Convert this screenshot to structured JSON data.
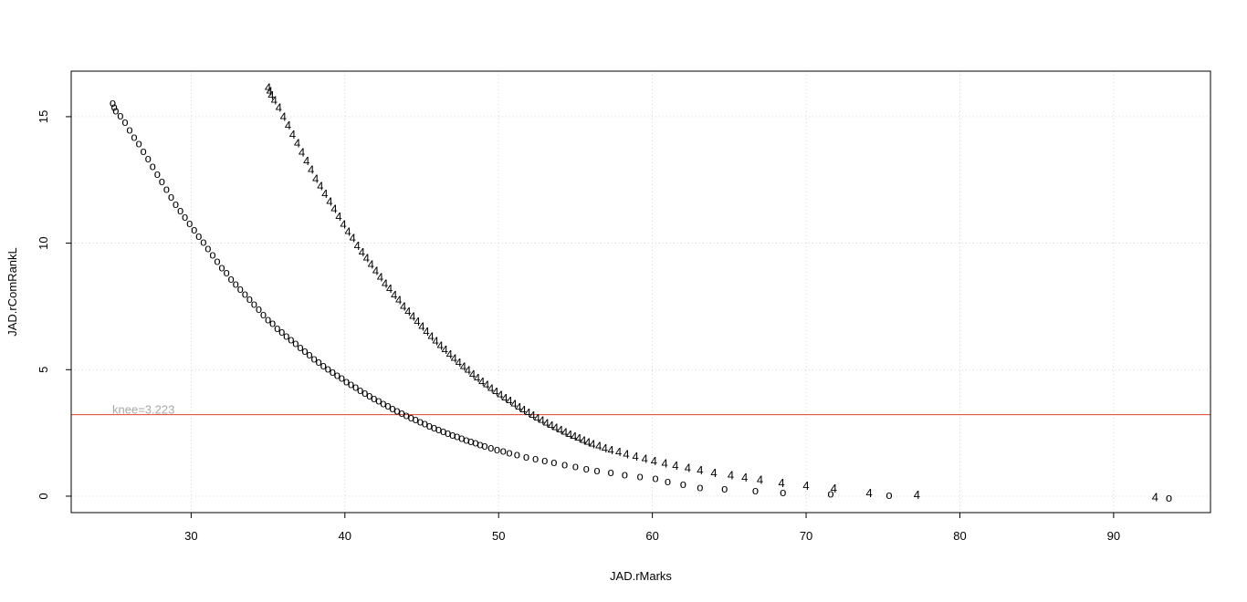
{
  "chart_data": {
    "type": "scatter",
    "xlabel": "JAD.rMarks",
    "ylabel": "JAD.rComRankL",
    "xlim": [
      22.2,
      96.3
    ],
    "ylim": [
      -0.65,
      16.8
    ],
    "xticks": [
      30,
      40,
      50,
      60,
      70,
      80,
      90
    ],
    "yticks": [
      0,
      5,
      10,
      15
    ],
    "grid": true,
    "grid_style": "dotted",
    "colors": {
      "grid": "#d3d3d3",
      "knee_line": "#e0402f",
      "knee_text": "#a9a9a9",
      "points": "#000000"
    },
    "knee": {
      "y": 3.223,
      "label": "knee=3.223"
    },
    "series": [
      {
        "marker": "o",
        "points": [
          [
            24.9,
            15.55
          ],
          [
            25.0,
            15.4
          ],
          [
            25.1,
            15.25
          ],
          [
            25.4,
            15.05
          ],
          [
            25.7,
            14.8
          ],
          [
            26.0,
            14.5
          ],
          [
            26.3,
            14.2
          ],
          [
            26.6,
            13.95
          ],
          [
            26.9,
            13.65
          ],
          [
            27.2,
            13.35
          ],
          [
            27.5,
            13.05
          ],
          [
            27.8,
            12.75
          ],
          [
            28.1,
            12.45
          ],
          [
            28.4,
            12.15
          ],
          [
            28.7,
            11.85
          ],
          [
            29.0,
            11.55
          ],
          [
            29.3,
            11.3
          ],
          [
            29.6,
            11.05
          ],
          [
            29.9,
            10.8
          ],
          [
            30.2,
            10.55
          ],
          [
            30.5,
            10.3
          ],
          [
            30.8,
            10.05
          ],
          [
            31.1,
            9.8
          ],
          [
            31.4,
            9.55
          ],
          [
            31.7,
            9.3
          ],
          [
            32.0,
            9.05
          ],
          [
            32.3,
            8.85
          ],
          [
            32.6,
            8.6
          ],
          [
            32.9,
            8.4
          ],
          [
            33.2,
            8.2
          ],
          [
            33.5,
            8.0
          ],
          [
            33.8,
            7.8
          ],
          [
            34.1,
            7.6
          ],
          [
            34.4,
            7.4
          ],
          [
            34.7,
            7.2
          ],
          [
            35.0,
            7.0
          ],
          [
            35.3,
            6.85
          ],
          [
            35.6,
            6.65
          ],
          [
            35.9,
            6.5
          ],
          [
            36.2,
            6.35
          ],
          [
            36.5,
            6.2
          ],
          [
            36.8,
            6.05
          ],
          [
            37.1,
            5.9
          ],
          [
            37.4,
            5.75
          ],
          [
            37.7,
            5.6
          ],
          [
            38.0,
            5.45
          ],
          [
            38.3,
            5.32
          ],
          [
            38.6,
            5.18
          ],
          [
            38.9,
            5.05
          ],
          [
            39.2,
            4.92
          ],
          [
            39.5,
            4.8
          ],
          [
            39.8,
            4.68
          ],
          [
            40.1,
            4.55
          ],
          [
            40.4,
            4.43
          ],
          [
            40.7,
            4.32
          ],
          [
            41.0,
            4.2
          ],
          [
            41.3,
            4.1
          ],
          [
            41.6,
            3.98
          ],
          [
            41.9,
            3.88
          ],
          [
            42.2,
            3.78
          ],
          [
            42.5,
            3.68
          ],
          [
            42.8,
            3.58
          ],
          [
            43.1,
            3.48
          ],
          [
            43.4,
            3.39
          ],
          [
            43.7,
            3.3
          ],
          [
            44.0,
            3.21
          ],
          [
            44.3,
            3.12
          ],
          [
            44.6,
            3.04
          ],
          [
            44.9,
            2.96
          ],
          [
            45.2,
            2.88
          ],
          [
            45.5,
            2.8
          ],
          [
            45.8,
            2.72
          ],
          [
            46.1,
            2.65
          ],
          [
            46.4,
            2.58
          ],
          [
            46.7,
            2.51
          ],
          [
            47.0,
            2.44
          ],
          [
            47.3,
            2.37
          ],
          [
            47.6,
            2.3
          ],
          [
            47.9,
            2.24
          ],
          [
            48.2,
            2.18
          ],
          [
            48.5,
            2.12
          ],
          [
            48.8,
            2.06
          ],
          [
            49.1,
            2.0
          ],
          [
            49.5,
            1.93
          ],
          [
            49.9,
            1.86
          ],
          [
            50.3,
            1.8
          ],
          [
            50.7,
            1.73
          ],
          [
            51.2,
            1.65
          ],
          [
            51.8,
            1.57
          ],
          [
            52.4,
            1.5
          ],
          [
            53.0,
            1.42
          ],
          [
            53.6,
            1.35
          ],
          [
            54.3,
            1.26
          ],
          [
            55.0,
            1.18
          ],
          [
            55.7,
            1.1
          ],
          [
            56.4,
            1.03
          ],
          [
            57.3,
            0.95
          ],
          [
            58.2,
            0.87
          ],
          [
            59.2,
            0.79
          ],
          [
            60.2,
            0.72
          ],
          [
            61.0,
            0.6
          ],
          [
            62.0,
            0.48
          ],
          [
            63.1,
            0.36
          ],
          [
            64.7,
            0.3
          ],
          [
            66.7,
            0.23
          ],
          [
            68.5,
            0.17
          ],
          [
            71.6,
            0.1
          ],
          [
            75.4,
            0.05
          ],
          [
            93.6,
            -0.05
          ]
        ]
      },
      {
        "marker": "4",
        "points": [
          [
            35.0,
            16.15
          ],
          [
            35.1,
            16.0
          ],
          [
            35.2,
            15.85
          ],
          [
            35.4,
            15.65
          ],
          [
            35.7,
            15.35
          ],
          [
            36.0,
            15.0
          ],
          [
            36.3,
            14.65
          ],
          [
            36.6,
            14.3
          ],
          [
            36.9,
            13.95
          ],
          [
            37.2,
            13.6
          ],
          [
            37.5,
            13.25
          ],
          [
            37.8,
            12.9
          ],
          [
            38.1,
            12.55
          ],
          [
            38.4,
            12.25
          ],
          [
            38.7,
            11.95
          ],
          [
            39.0,
            11.65
          ],
          [
            39.3,
            11.35
          ],
          [
            39.6,
            11.05
          ],
          [
            39.9,
            10.75
          ],
          [
            40.2,
            10.45
          ],
          [
            40.5,
            10.2
          ],
          [
            40.8,
            9.9
          ],
          [
            41.1,
            9.65
          ],
          [
            41.4,
            9.4
          ],
          [
            41.7,
            9.15
          ],
          [
            42.0,
            8.9
          ],
          [
            42.3,
            8.65
          ],
          [
            42.6,
            8.4
          ],
          [
            42.9,
            8.2
          ],
          [
            43.2,
            7.95
          ],
          [
            43.5,
            7.75
          ],
          [
            43.8,
            7.5
          ],
          [
            44.1,
            7.3
          ],
          [
            44.4,
            7.1
          ],
          [
            44.7,
            6.9
          ],
          [
            45.0,
            6.7
          ],
          [
            45.3,
            6.5
          ],
          [
            45.6,
            6.3
          ],
          [
            45.9,
            6.12
          ],
          [
            46.2,
            5.95
          ],
          [
            46.5,
            5.78
          ],
          [
            46.8,
            5.6
          ],
          [
            47.1,
            5.44
          ],
          [
            47.4,
            5.28
          ],
          [
            47.7,
            5.12
          ],
          [
            48.0,
            4.97
          ],
          [
            48.3,
            4.82
          ],
          [
            48.6,
            4.67
          ],
          [
            48.9,
            4.53
          ],
          [
            49.2,
            4.4
          ],
          [
            49.5,
            4.26
          ],
          [
            49.8,
            4.13
          ],
          [
            50.1,
            4.0
          ],
          [
            50.4,
            3.88
          ],
          [
            50.7,
            3.76
          ],
          [
            51.0,
            3.64
          ],
          [
            51.3,
            3.52
          ],
          [
            51.6,
            3.41
          ],
          [
            51.9,
            3.3
          ],
          [
            52.2,
            3.19
          ],
          [
            52.5,
            3.09
          ],
          [
            52.8,
            2.99
          ],
          [
            53.1,
            2.89
          ],
          [
            53.4,
            2.79
          ],
          [
            53.7,
            2.7
          ],
          [
            54.0,
            2.61
          ],
          [
            54.3,
            2.52
          ],
          [
            54.6,
            2.44
          ],
          [
            54.9,
            2.36
          ],
          [
            55.2,
            2.28
          ],
          [
            55.5,
            2.2
          ],
          [
            55.8,
            2.13
          ],
          [
            56.1,
            2.06
          ],
          [
            56.5,
            1.98
          ],
          [
            56.9,
            1.9
          ],
          [
            57.3,
            1.82
          ],
          [
            57.8,
            1.74
          ],
          [
            58.3,
            1.66
          ],
          [
            58.9,
            1.57
          ],
          [
            59.5,
            1.48
          ],
          [
            60.1,
            1.39
          ],
          [
            60.8,
            1.3
          ],
          [
            61.5,
            1.21
          ],
          [
            62.3,
            1.12
          ],
          [
            63.1,
            1.02
          ],
          [
            64.0,
            0.92
          ],
          [
            65.1,
            0.82
          ],
          [
            66.0,
            0.73
          ],
          [
            67.0,
            0.65
          ],
          [
            68.4,
            0.52
          ],
          [
            70.0,
            0.42
          ],
          [
            71.8,
            0.3
          ],
          [
            74.1,
            0.12
          ],
          [
            77.2,
            0.05
          ],
          [
            92.7,
            -0.03
          ]
        ]
      }
    ]
  }
}
